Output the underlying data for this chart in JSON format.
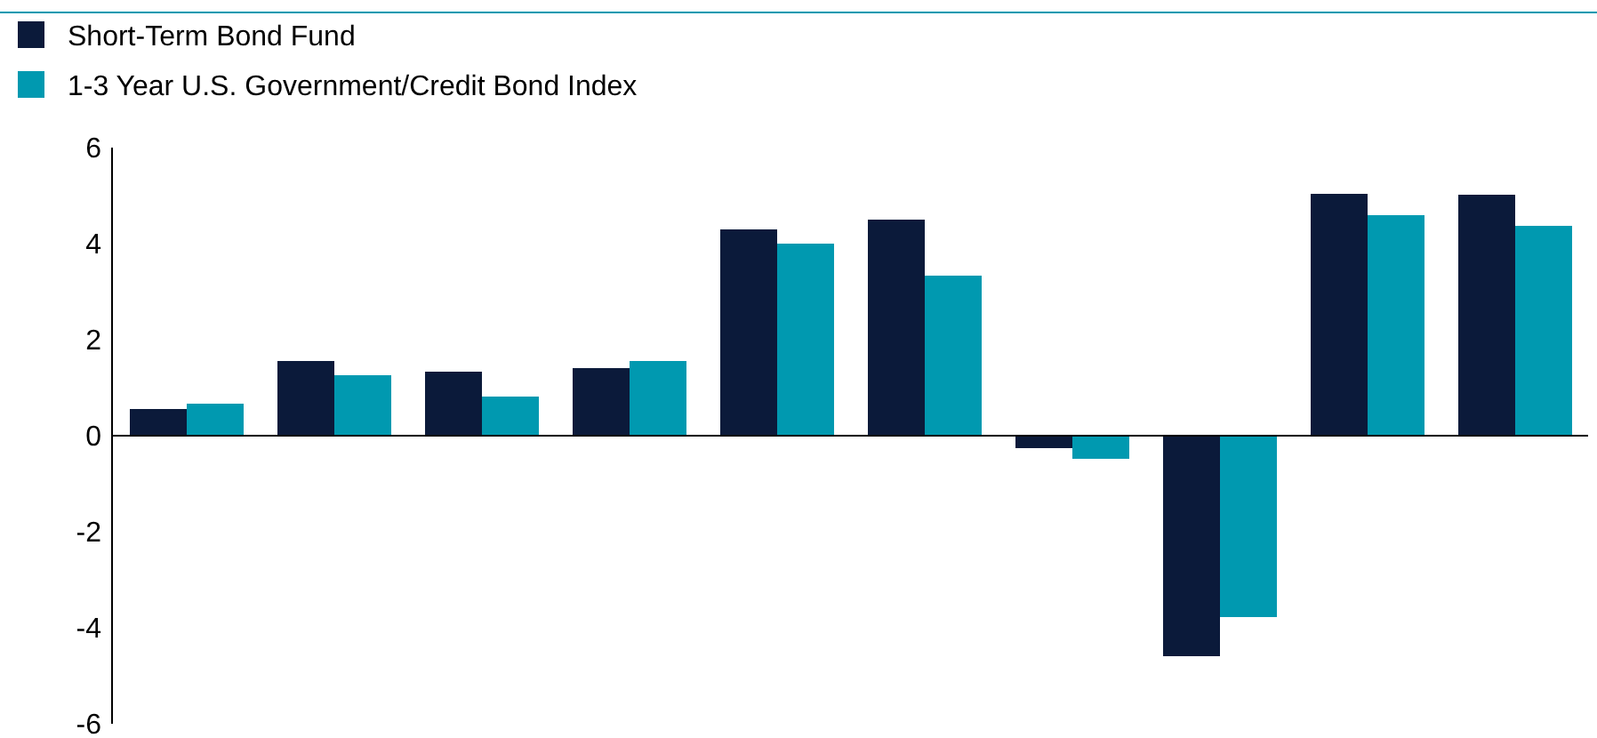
{
  "chart_data": {
    "type": "bar",
    "categories": [
      null,
      null,
      null,
      null,
      null,
      null,
      null,
      null,
      null,
      null
    ],
    "series": [
      {
        "name": "Short-Term Bond Fund",
        "color": "#0b1a3a",
        "values": [
          0.55,
          1.55,
          1.33,
          1.4,
          4.3,
          4.5,
          -0.26,
          -4.6,
          5.04,
          5.02
        ]
      },
      {
        "name": "1-3 Year U.S. Government/Credit Bond Index",
        "color": "#0099b0",
        "values": [
          0.67,
          1.26,
          0.81,
          1.55,
          4.0,
          3.33,
          -0.48,
          -3.78,
          4.6,
          4.37
        ]
      }
    ],
    "ylim": [
      -6,
      6
    ],
    "yticks": [
      -6,
      -4,
      -2,
      0,
      2,
      4,
      6
    ],
    "legend": "top left"
  }
}
